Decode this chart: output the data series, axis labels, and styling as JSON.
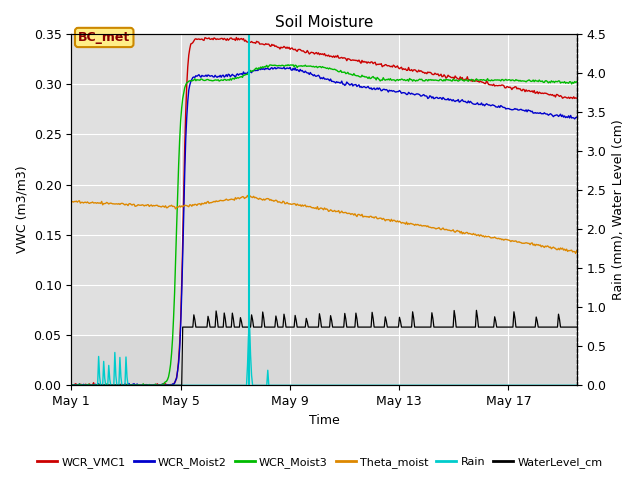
{
  "title": "Soil Moisture",
  "xlabel": "Time",
  "ylabel_left": "VWC (m3/m3)",
  "ylabel_right": "Rain (mm), Water Level (cm)",
  "xlim_days": [
    0,
    18.5
  ],
  "ylim_left": [
    0.0,
    0.35
  ],
  "ylim_right": [
    0.0,
    4.5
  ],
  "x_ticks_labels": [
    "May 1",
    "May 5",
    "May 9",
    "May 13",
    "May 17"
  ],
  "x_ticks_pos": [
    0,
    4,
    8,
    12,
    16
  ],
  "annotation_box": "BC_met",
  "bg_color_top": "#dcdcdc",
  "bg_color_bottom": "#c8c8c8",
  "legend_entries": [
    {
      "label": "WCR_VMC1",
      "color": "#cc0000"
    },
    {
      "label": "WCR_Moist2",
      "color": "#0000cc"
    },
    {
      "label": "WCR_Moist3",
      "color": "#00bb00"
    },
    {
      "label": "Theta_moist",
      "color": "#dd8800"
    },
    {
      "label": "Rain",
      "color": "#00cccc"
    },
    {
      "label": "WaterLevel_cm",
      "color": "#000000"
    }
  ],
  "vline_x": 6.5,
  "rise_day": 4.1,
  "wcr_vmc1_peak": 0.345,
  "wcr_vmc1_end": 0.285,
  "wcr_moist2_peak": 0.315,
  "wcr_moist2_end": 0.272,
  "wcr_moist3_start": 0.305,
  "wcr_moist3_end": 0.312,
  "theta_start": 0.183,
  "theta_peak": 0.188,
  "theta_end": 0.133,
  "water_base": 0.058
}
